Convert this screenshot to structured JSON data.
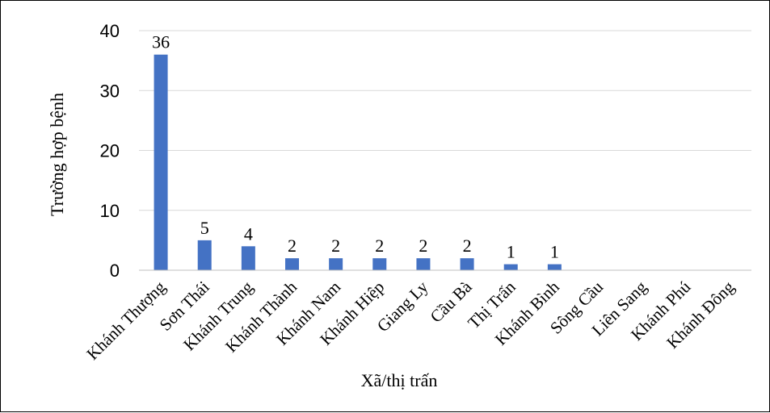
{
  "chart_data": {
    "type": "bar",
    "categories": [
      "Khánh Thượng",
      "Sơn Thái",
      "Khánh Trung",
      "Khánh Thành",
      "Khánh Nam",
      "Khánh Hiệp",
      "Giang Ly",
      "Cầu Bà",
      "Thị Trấn",
      "Khánh Bình",
      "Sông Cầu",
      "Liên Sang",
      "Khánh Phú",
      "Khánh Đông"
    ],
    "values": [
      36,
      5,
      4,
      2,
      2,
      2,
      2,
      2,
      1,
      1,
      0,
      0,
      0,
      0
    ],
    "data_labels": [
      "36",
      "5",
      "4",
      "2",
      "2",
      "2",
      "2",
      "2",
      "1",
      "1",
      "",
      "",
      "",
      ""
    ],
    "xlabel": "Xã/thị trấn",
    "ylabel": "Trường hợp bệnh",
    "ylim": [
      0,
      40
    ],
    "yticks": [
      0,
      10,
      20,
      30,
      40
    ],
    "grid": true,
    "bar_color": "#4472C4",
    "grid_color": "#D9D9D9"
  }
}
